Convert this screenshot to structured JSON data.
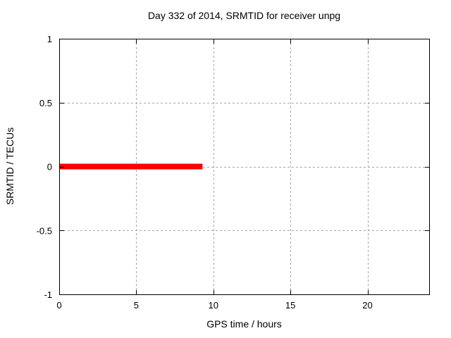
{
  "chart_data": {
    "type": "line",
    "title": "Day 332 of 2014, SRMTID for receiver unpg",
    "xlabel": "GPS time / hours",
    "ylabel": "SRMTID / TECUs",
    "xlim": [
      0,
      24
    ],
    "ylim": [
      -1,
      1
    ],
    "x_ticks": [
      0,
      5,
      10,
      15,
      20
    ],
    "x_tick_labels": [
      "0",
      "5",
      "10",
      "15",
      "20"
    ],
    "y_ticks": [
      -1,
      -0.5,
      0,
      0.5,
      1
    ],
    "y_tick_labels": [
      "-1",
      "-0.5",
      "0",
      "0.5",
      "1"
    ],
    "grid": true,
    "grid_style": "dashed",
    "legend_position": "none",
    "series": [
      {
        "name": "srmtid",
        "color": "#ff0000",
        "linewidth": 8,
        "x": [
          0,
          9.3
        ],
        "y": [
          0,
          0
        ]
      }
    ],
    "colors": {
      "background": "#ffffff",
      "border": "#000000",
      "grid": "#a6a6a6",
      "text": "#000000",
      "line": "#ff0000"
    }
  }
}
